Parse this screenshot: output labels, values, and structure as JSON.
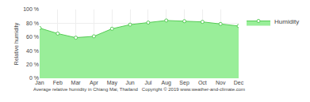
{
  "chart_data": {
    "type": "area",
    "categories": [
      "Jan",
      "Feb",
      "Mar",
      "Apr",
      "May",
      "Jun",
      "Jul",
      "Aug",
      "Sep",
      "Oct",
      "Nov",
      "Dec"
    ],
    "series": [
      {
        "name": "Humidity",
        "color": "#99ee99",
        "values": [
          73,
          65,
          59,
          61,
          72,
          78,
          81,
          84,
          83,
          82,
          79,
          76
        ]
      }
    ],
    "ylabel": "Relative humidity",
    "xlabel": "Average relative humidity in Chiang Mai, Thailand   Copyright © 2019 www.weather-and-climate.com",
    "ylim": [
      0,
      100
    ],
    "yticks": [
      {
        "value": 0,
        "label": "0 %"
      },
      {
        "value": 20,
        "label": "20 %"
      },
      {
        "value": 40,
        "label": "40 %"
      },
      {
        "value": 60,
        "label": "60 %"
      },
      {
        "value": 80,
        "label": "80 %"
      },
      {
        "value": 100,
        "label": "100 %"
      }
    ],
    "grid": true,
    "legend": "upper right",
    "marker": "circle"
  }
}
